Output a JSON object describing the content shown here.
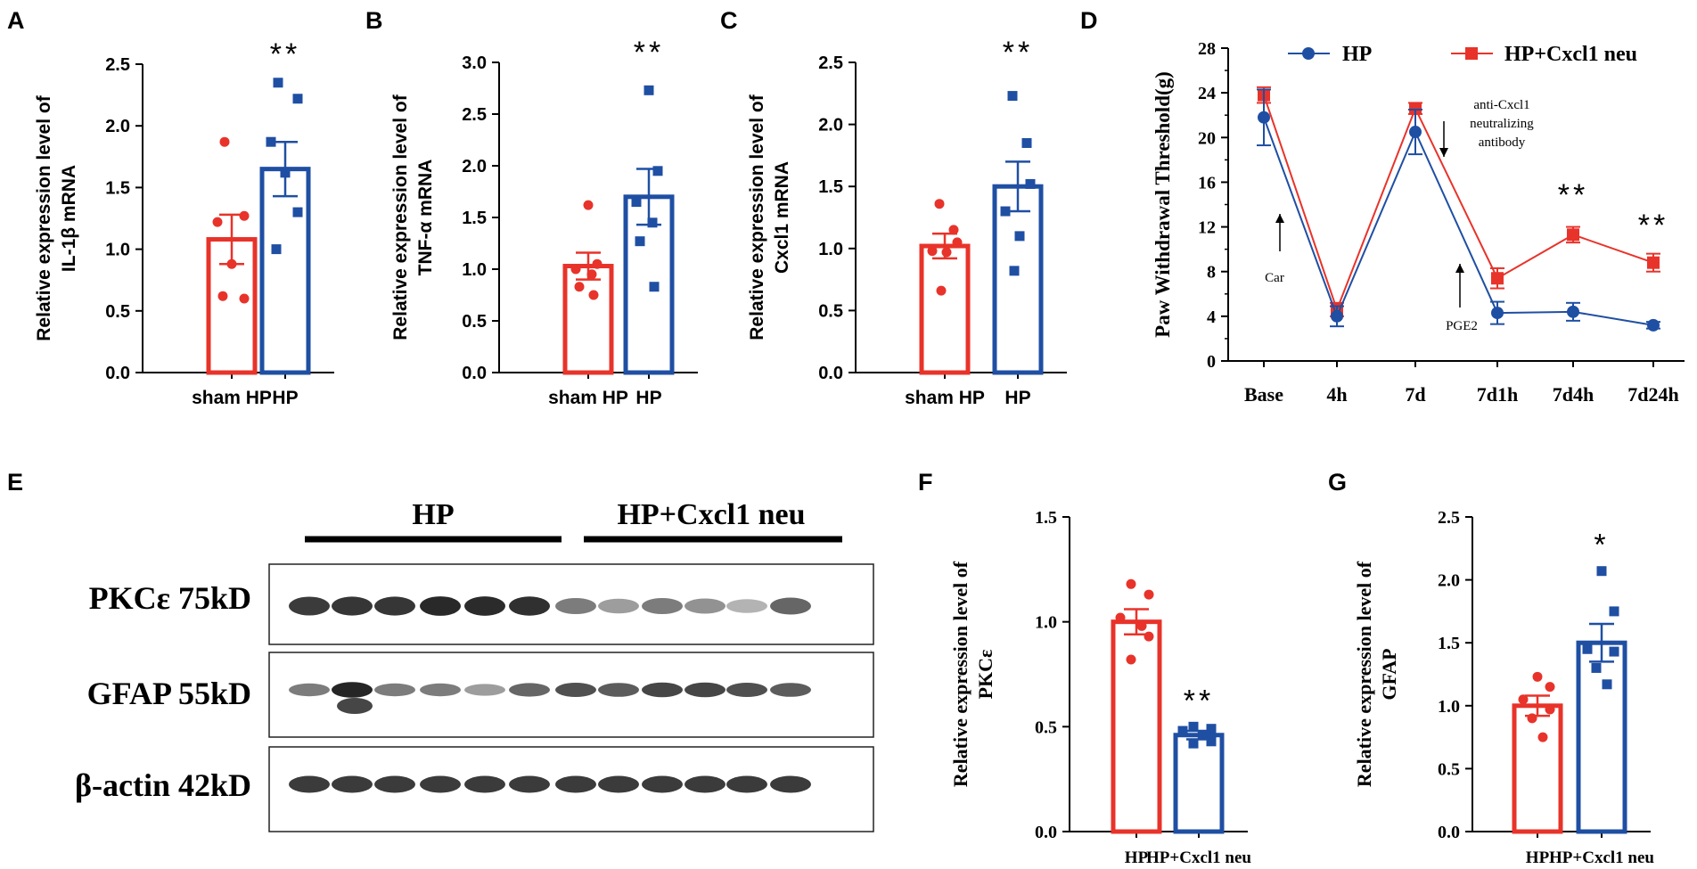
{
  "panels": {
    "A": "A",
    "B": "B",
    "C": "C",
    "D": "D",
    "E": "E",
    "F": "F",
    "G": "G"
  },
  "colors": {
    "red": "#e8332a",
    "blue": "#1f4fa3",
    "black": "#000000"
  },
  "chart_data": [
    {
      "id": "A",
      "type": "bar",
      "ylabel_lines": [
        "Relative expression level of",
        "IL-1β mRNA"
      ],
      "categories": [
        "sham HP",
        "HP"
      ],
      "ylim": [
        0,
        2.5
      ],
      "yticks": [
        0.0,
        0.5,
        1.0,
        1.5,
        2.0,
        2.5
      ],
      "yticklabels": [
        "0.0",
        "0.5",
        "1.0",
        "1.5",
        "2.0",
        "2.5"
      ],
      "series": [
        {
          "name": "sham HP",
          "mean": 1.08,
          "sem": 0.2,
          "points": [
            1.87,
            1.27,
            1.22,
            0.88,
            0.6,
            0.62
          ],
          "color": "red",
          "marker": "circle"
        },
        {
          "name": "HP",
          "mean": 1.65,
          "sem": 0.22,
          "points": [
            2.35,
            2.22,
            1.87,
            1.62,
            1.3,
            1.0
          ],
          "color": "blue",
          "marker": "square"
        }
      ],
      "significance": "**"
    },
    {
      "id": "B",
      "type": "bar",
      "ylabel_lines": [
        "Relative expression level of",
        "TNF-α mRNA"
      ],
      "categories": [
        "sham HP",
        "HP"
      ],
      "ylim": [
        0,
        3.0
      ],
      "yticks": [
        0.0,
        0.5,
        1.0,
        1.5,
        2.0,
        2.5,
        3.0
      ],
      "yticklabels": [
        "0.0",
        "0.5",
        "1.0",
        "1.5",
        "2.0",
        "2.5",
        "3.0"
      ],
      "series": [
        {
          "name": "sham HP",
          "mean": 1.03,
          "sem": 0.13,
          "points": [
            1.62,
            1.05,
            1.0,
            0.95,
            0.83,
            0.75
          ],
          "color": "red",
          "marker": "circle"
        },
        {
          "name": "HP",
          "mean": 1.7,
          "sem": 0.27,
          "points": [
            2.73,
            1.95,
            1.65,
            1.45,
            1.27,
            0.83
          ],
          "color": "blue",
          "marker": "square"
        }
      ],
      "significance": "**"
    },
    {
      "id": "C",
      "type": "bar",
      "ylabel_lines": [
        "Relative expression level of",
        "Cxcl1 mRNA"
      ],
      "categories": [
        "sham HP",
        "HP"
      ],
      "ylim": [
        0,
        2.5
      ],
      "yticks": [
        0.0,
        0.5,
        1.0,
        1.5,
        2.0,
        2.5
      ],
      "yticklabels": [
        "0.0",
        "0.5",
        "1.0",
        "1.5",
        "2.0",
        "2.5"
      ],
      "series": [
        {
          "name": "sham HP",
          "mean": 1.02,
          "sem": 0.1,
          "points": [
            1.36,
            1.15,
            1.05,
            0.98,
            0.97,
            0.66
          ],
          "color": "red",
          "marker": "circle"
        },
        {
          "name": "HP",
          "mean": 1.5,
          "sem": 0.2,
          "points": [
            2.23,
            1.85,
            1.52,
            1.3,
            1.1,
            0.82
          ],
          "color": "blue",
          "marker": "square"
        }
      ],
      "significance": "**"
    },
    {
      "id": "D",
      "type": "line",
      "ylabel": "Paw Withdrawal Threshold(g)",
      "categories": [
        "Base",
        "4h",
        "7d",
        "7d1h",
        "7d4h",
        "7d24h"
      ],
      "ylim": [
        0,
        28
      ],
      "yticks": [
        0,
        4,
        8,
        12,
        16,
        20,
        24,
        28
      ],
      "yticklabels": [
        "0",
        "4",
        "8",
        "12",
        "16",
        "20",
        "24",
        "28"
      ],
      "series": [
        {
          "name": "HP",
          "values": [
            21.8,
            4.0,
            20.5,
            4.3,
            4.4,
            3.2
          ],
          "sem": [
            2.5,
            0.9,
            2.0,
            1.0,
            0.8,
            0.3
          ],
          "color": "blue",
          "marker": "circle"
        },
        {
          "name": "HP+Cxcl1 neu",
          "values": [
            23.8,
            4.6,
            22.6,
            7.4,
            11.3,
            8.8
          ],
          "sem": [
            0.7,
            0.6,
            0.5,
            0.9,
            0.7,
            0.8
          ],
          "color": "red",
          "marker": "square"
        }
      ],
      "annotations": [
        {
          "text": "Car",
          "category": "Base",
          "y": 9.5
        },
        {
          "text": "anti-Cxcl1",
          "category": "7d",
          "y": 26.0
        },
        {
          "text": "neutralizing",
          "category": "7d",
          "y": 24.5
        },
        {
          "text": "antibody",
          "category": "7d",
          "y": 23.0
        },
        {
          "text": "PGE2",
          "category": "7d1h",
          "y": 4.0
        }
      ],
      "significance": [
        {
          "category": "7d4h",
          "text": "**"
        },
        {
          "category": "7d24h",
          "text": "**"
        }
      ],
      "legend_position": "top"
    },
    {
      "id": "F",
      "type": "bar",
      "ylabel_lines": [
        "Relative expression level of",
        "PKCε"
      ],
      "categories": [
        "HP",
        "HP+Cxcl1 neu"
      ],
      "ylim": [
        0,
        1.5
      ],
      "yticks": [
        0.0,
        0.5,
        1.0,
        1.5
      ],
      "yticklabels": [
        "0.0",
        "0.5",
        "1.0",
        "1.5"
      ],
      "series": [
        {
          "name": "HP",
          "mean": 1.0,
          "sem": 0.06,
          "points": [
            1.18,
            1.13,
            1.02,
            0.98,
            0.93,
            0.82
          ],
          "color": "red",
          "marker": "circle"
        },
        {
          "name": "HP+Cxcl1 neu",
          "mean": 0.46,
          "sem": 0.02,
          "points": [
            0.5,
            0.49,
            0.48,
            0.46,
            0.43,
            0.42
          ],
          "color": "blue",
          "marker": "square"
        }
      ],
      "significance": "**"
    },
    {
      "id": "G",
      "type": "bar",
      "ylabel_lines": [
        "Relative expression level of",
        "GFAP"
      ],
      "categories": [
        "HP",
        "HP+Cxcl1 neu"
      ],
      "ylim": [
        0,
        2.5
      ],
      "yticks": [
        0.0,
        0.5,
        1.0,
        1.5,
        2.0,
        2.5
      ],
      "yticklabels": [
        "0.0",
        "0.5",
        "1.0",
        "1.5",
        "2.0",
        "2.5"
      ],
      "series": [
        {
          "name": "HP",
          "mean": 1.0,
          "sem": 0.08,
          "points": [
            1.23,
            1.15,
            1.05,
            0.97,
            0.9,
            0.75
          ],
          "color": "red",
          "marker": "circle"
        },
        {
          "name": "HP+Cxcl1 neu",
          "mean": 1.5,
          "sem": 0.15,
          "points": [
            2.07,
            1.75,
            1.45,
            1.43,
            1.3,
            1.17
          ],
          "color": "blue",
          "marker": "square"
        }
      ],
      "significance": "*"
    }
  ],
  "western_blot": {
    "groups": [
      "HP",
      "HP+Cxcl1 neu"
    ],
    "rows": [
      {
        "label": "PKCε 75kD",
        "intensities": [
          0.9,
          0.92,
          0.92,
          0.98,
          0.97,
          0.95,
          0.6,
          0.45,
          0.6,
          0.5,
          0.35,
          0.7
        ]
      },
      {
        "label": "GFAP 55kD",
        "intensities": [
          0.6,
          1.0,
          0.6,
          0.6,
          0.45,
          0.7,
          0.8,
          0.75,
          0.85,
          0.85,
          0.8,
          0.75
        ]
      },
      {
        "label": "β-actin 42kD",
        "intensities": [
          0.9,
          0.9,
          0.9,
          0.9,
          0.9,
          0.9,
          0.9,
          0.9,
          0.9,
          0.9,
          0.9,
          0.9
        ]
      }
    ]
  }
}
